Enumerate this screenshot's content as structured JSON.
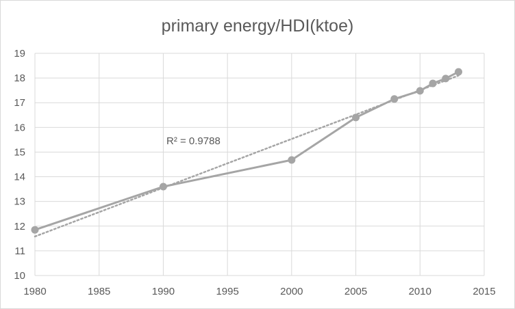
{
  "chart_data": {
    "type": "line",
    "title": "primary energy/HDI(ktoe)",
    "xlabel": "",
    "ylabel": "",
    "xlim": [
      1980,
      2015
    ],
    "ylim": [
      10,
      19
    ],
    "x_ticks": [
      1980,
      1985,
      1990,
      1995,
      2000,
      2005,
      2010,
      2015
    ],
    "y_ticks": [
      10,
      11,
      12,
      13,
      14,
      15,
      16,
      17,
      18,
      19
    ],
    "grid": true,
    "series": [
      {
        "x": [
          1980,
          1990,
          2000,
          2005,
          2008,
          2010,
          2011,
          2012,
          2013
        ],
        "values": [
          11.85,
          13.6,
          14.68,
          16.4,
          17.15,
          17.48,
          17.78,
          17.98,
          18.25
        ],
        "color": "#a5a5a5"
      }
    ],
    "trendline": {
      "type": "linear",
      "from": [
        1980,
        11.58
      ],
      "to": [
        2013,
        18.1
      ],
      "style": "dotted",
      "color": "#a5a5a5"
    },
    "annotation": {
      "text": "R² = 0.9788"
    }
  }
}
